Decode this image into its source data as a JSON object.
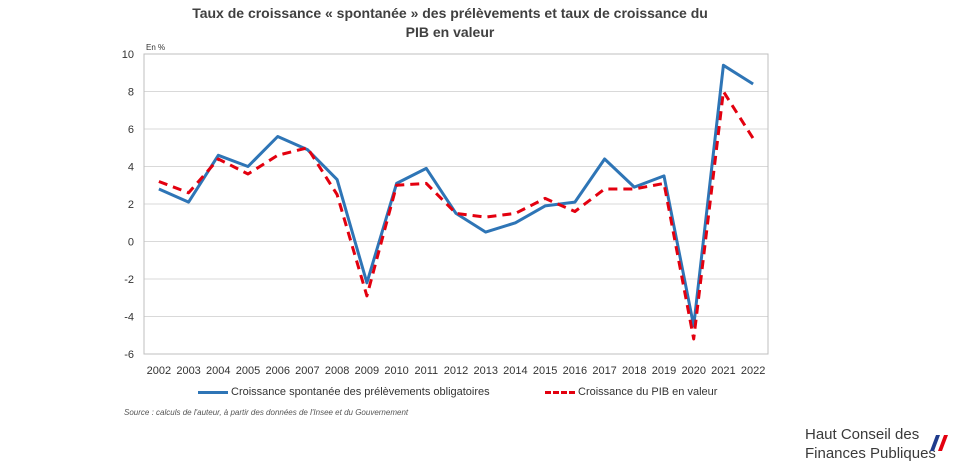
{
  "chart_data": {
    "type": "line",
    "title_line1": "Taux de croissance « spontanée » des prélèvements et taux de croissance du",
    "title_line2": "PIB en valeur",
    "unit_label": "En %",
    "categories": [
      "2002",
      "2003",
      "2004",
      "2005",
      "2006",
      "2007",
      "2008",
      "2009",
      "2010",
      "2011",
      "2012",
      "2013",
      "2014",
      "2015",
      "2016",
      "2017",
      "2018",
      "2019",
      "2020",
      "2021",
      "2022"
    ],
    "ylim": [
      -6,
      10
    ],
    "yticks": [
      -6,
      -4,
      -2,
      0,
      2,
      4,
      6,
      8,
      10
    ],
    "grid": true,
    "legend_position": "bottom",
    "series": [
      {
        "name": "Croissance spontanée des prélèvements obligatoires",
        "color": "#2E75B6",
        "style": "solid",
        "values": [
          2.8,
          2.1,
          4.6,
          4.0,
          5.6,
          4.9,
          3.3,
          -2.2,
          3.1,
          3.9,
          1.5,
          0.5,
          1.0,
          1.9,
          2.1,
          4.4,
          2.9,
          3.5,
          -4.5,
          9.4,
          8.4
        ]
      },
      {
        "name": "Croissance du PIB en valeur",
        "color": "#E3000F",
        "style": "dashed",
        "values": [
          3.2,
          2.6,
          4.4,
          3.6,
          4.6,
          5.0,
          2.5,
          -2.9,
          3.0,
          3.1,
          1.5,
          1.3,
          1.5,
          2.3,
          1.6,
          2.8,
          2.8,
          3.1,
          -5.2,
          8.0,
          5.5
        ]
      }
    ]
  },
  "source": "Source : calculs de l'auteur, à partir des données de l'Insee et du Gouvernement",
  "logo": {
    "line1": "Haut Conseil des",
    "line2": "Finances Publiques",
    "colors": [
      "#1F3B8C",
      "#E3000F"
    ]
  }
}
